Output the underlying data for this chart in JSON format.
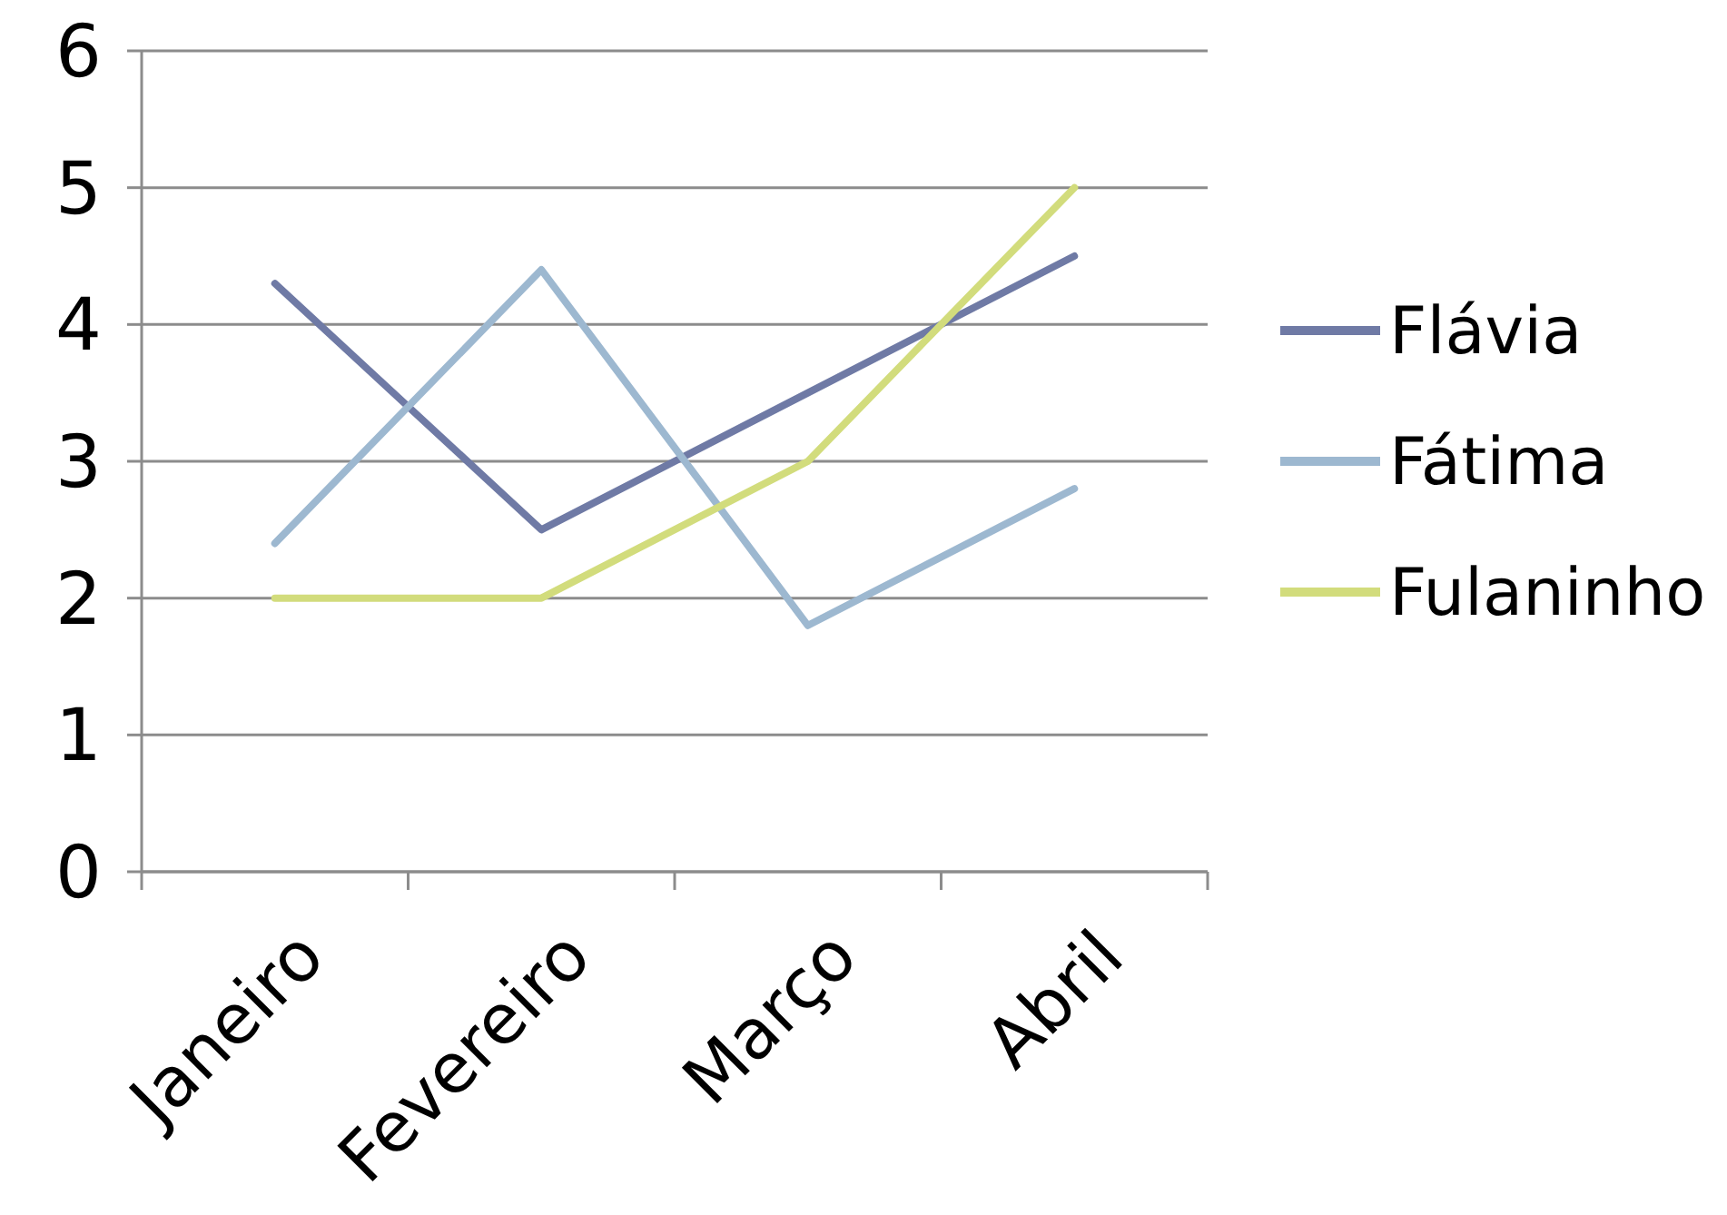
{
  "chart_data": {
    "type": "line",
    "categories": [
      "Janeiro",
      "Fevereiro",
      "Março",
      "Abril"
    ],
    "series": [
      {
        "name": "Flávia",
        "color": "#6f7aa5",
        "values": [
          4.3,
          2.5,
          3.5,
          4.5
        ]
      },
      {
        "name": "Fátima",
        "color": "#9db8d0",
        "values": [
          2.4,
          4.4,
          1.8,
          2.8
        ]
      },
      {
        "name": "Fulaninho",
        "color": "#d2dc7c",
        "values": [
          2,
          2,
          3,
          5
        ]
      }
    ],
    "ylim": [
      0,
      6
    ],
    "yticks": [
      0,
      1,
      2,
      3,
      4,
      5,
      6
    ],
    "grid": "y",
    "legend": "right",
    "marker": "none",
    "line_style": "solid"
  }
}
